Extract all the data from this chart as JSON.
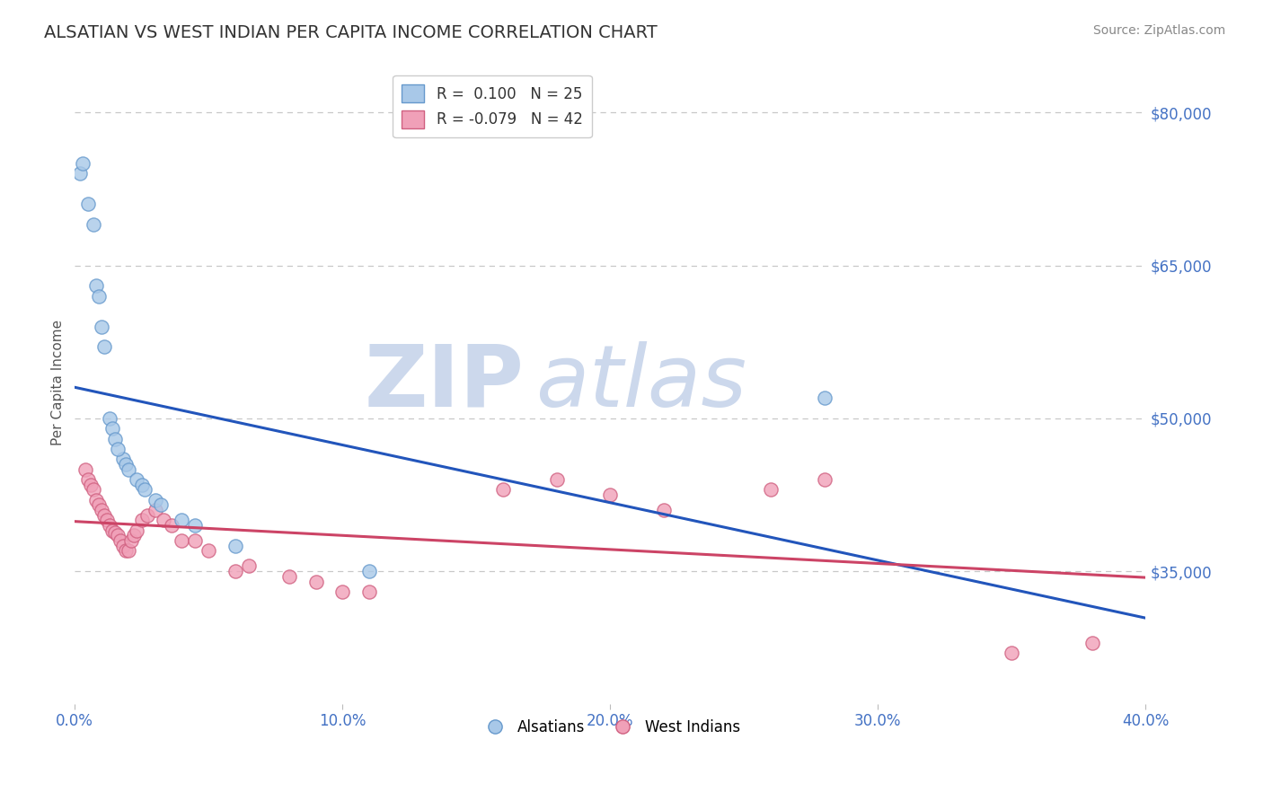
{
  "title": "ALSATIAN VS WEST INDIAN PER CAPITA INCOME CORRELATION CHART",
  "source": "Source: ZipAtlas.com",
  "ylabel": "Per Capita Income",
  "xlim": [
    0.0,
    0.4
  ],
  "ylim": [
    22000,
    85000
  ],
  "yticks": [
    35000,
    50000,
    65000,
    80000
  ],
  "ytick_labels": [
    "$35,000",
    "$50,000",
    "$65,000",
    "$80,000"
  ],
  "xticks": [
    0.0,
    0.1,
    0.2,
    0.3,
    0.4
  ],
  "xtick_labels": [
    "0.0%",
    "10.0%",
    "20.0%",
    "30.0%",
    "40.0%"
  ],
  "background_color": "#ffffff",
  "grid_color": "#c8c8c8",
  "ytick_color": "#4472c4",
  "xtick_color": "#4472c4",
  "alsatians_color": "#a8c8e8",
  "west_indians_color": "#f0a0b8",
  "alsatians_edge": "#6699cc",
  "west_indians_edge": "#d06080",
  "trend_blue": "#2255bb",
  "trend_pink": "#cc4466",
  "R_alsatian": 0.1,
  "N_alsatian": 25,
  "R_west_indian": -0.079,
  "N_west_indian": 42,
  "alsatians_x": [
    0.005,
    0.007,
    0.01,
    0.011,
    0.013,
    0.014,
    0.018,
    0.019,
    0.02,
    0.023,
    0.025,
    0.026,
    0.03,
    0.032,
    0.04,
    0.045,
    0.06,
    0.11,
    0.28,
    0.002,
    0.003,
    0.008,
    0.009,
    0.015,
    0.016
  ],
  "alsatians_y": [
    71000,
    69000,
    59000,
    57000,
    50000,
    49000,
    46000,
    45500,
    45000,
    44000,
    43500,
    43000,
    42000,
    41500,
    40000,
    39500,
    37500,
    35000,
    52000,
    74000,
    75000,
    63000,
    62000,
    48000,
    47000
  ],
  "west_indians_x": [
    0.004,
    0.005,
    0.006,
    0.007,
    0.008,
    0.009,
    0.01,
    0.011,
    0.012,
    0.013,
    0.014,
    0.015,
    0.016,
    0.017,
    0.018,
    0.019,
    0.02,
    0.021,
    0.022,
    0.023,
    0.025,
    0.027,
    0.03,
    0.033,
    0.036,
    0.04,
    0.045,
    0.05,
    0.06,
    0.065,
    0.08,
    0.09,
    0.1,
    0.11,
    0.16,
    0.18,
    0.2,
    0.22,
    0.26,
    0.28,
    0.35,
    0.38
  ],
  "west_indians_y": [
    45000,
    44000,
    43500,
    43000,
    42000,
    41500,
    41000,
    40500,
    40000,
    39500,
    39000,
    38800,
    38500,
    38000,
    37500,
    37000,
    37000,
    38000,
    38500,
    39000,
    40000,
    40500,
    41000,
    40000,
    39500,
    38000,
    38000,
    37000,
    35000,
    35500,
    34500,
    34000,
    33000,
    33000,
    43000,
    44000,
    42500,
    41000,
    43000,
    44000,
    27000,
    28000
  ],
  "watermark_line1": "ZIP",
  "watermark_line2": "atlas",
  "watermark_color": "#ccd8ec",
  "watermark_fontsize": 70,
  "title_fontsize": 14,
  "legend_fontsize": 12,
  "tick_fontsize": 12,
  "ylabel_fontsize": 11,
  "source_fontsize": 10,
  "marker_size": 120
}
